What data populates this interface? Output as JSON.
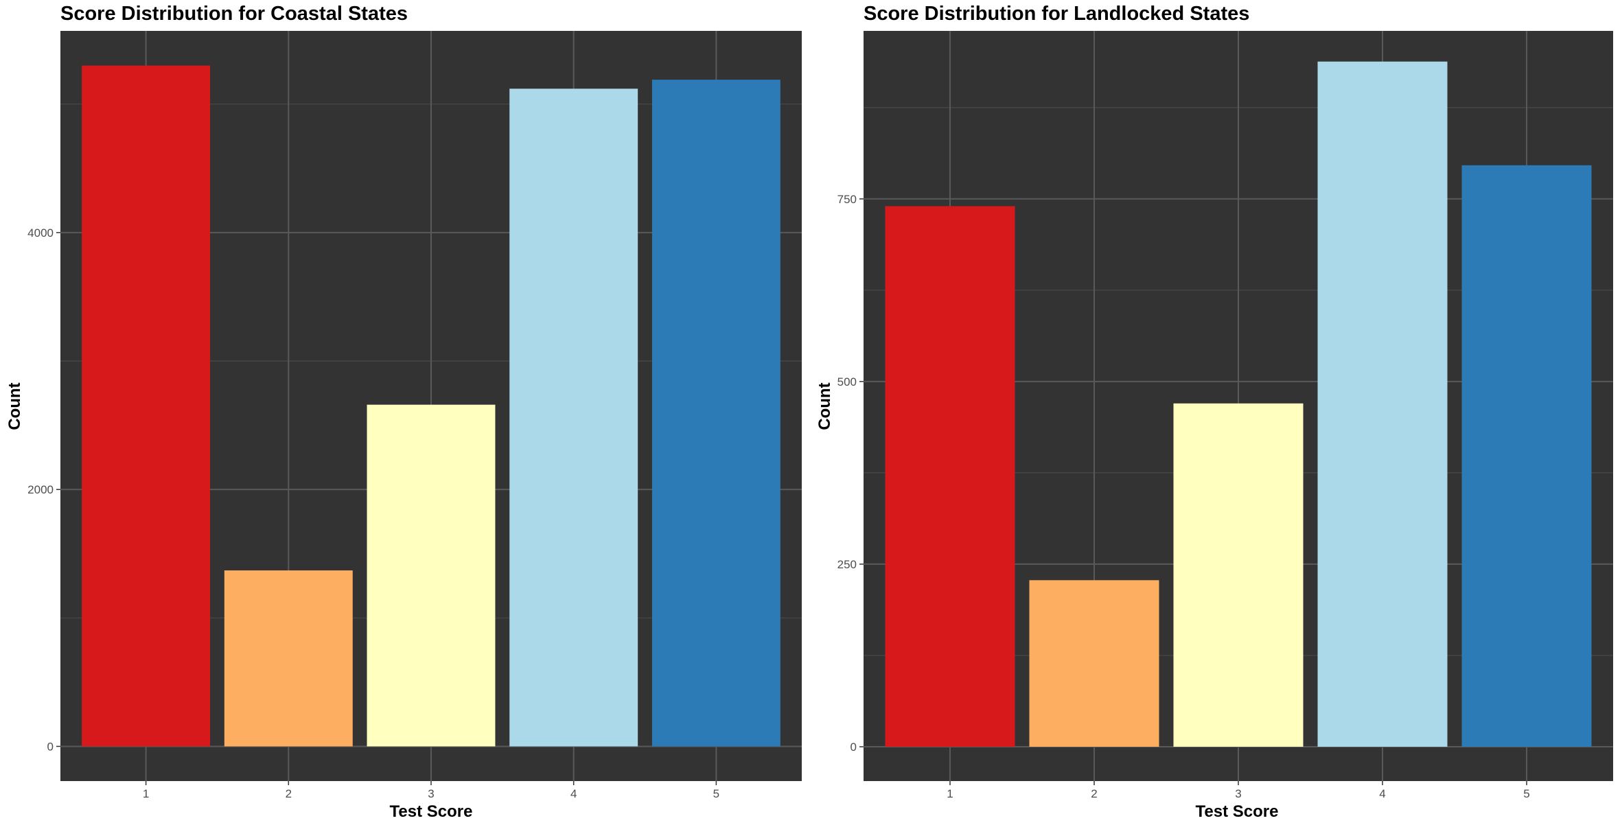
{
  "chart_data": [
    {
      "type": "bar",
      "title": "Score Distribution for Coastal States",
      "xlabel": "Test Score",
      "ylabel": "Count",
      "categories": [
        "1",
        "2",
        "3",
        "4",
        "5"
      ],
      "values": [
        5300,
        1370,
        2660,
        5120,
        5190
      ],
      "ylim": [
        -270,
        5570
      ],
      "yticks": [
        0,
        2000,
        4000
      ],
      "ytick_labels": [
        "0",
        "2000",
        "4000"
      ],
      "bar_colors": [
        "#d7191c",
        "#fdae61",
        "#ffffbf",
        "#abd9e9",
        "#2c7bb6"
      ],
      "panel_background": "#333333",
      "grid": true,
      "legend": "none"
    },
    {
      "type": "bar",
      "title": "Score Distribution for Landlocked States",
      "xlabel": "Test Score",
      "ylabel": "Count",
      "categories": [
        "1",
        "2",
        "3",
        "4",
        "5"
      ],
      "values": [
        740,
        228,
        470,
        938,
        796
      ],
      "ylim": [
        -47,
        980
      ],
      "yticks": [
        0,
        250,
        500,
        750
      ],
      "ytick_labels": [
        "0",
        "250",
        "500",
        "750"
      ],
      "bar_colors": [
        "#d7191c",
        "#fdae61",
        "#ffffbf",
        "#abd9e9",
        "#2c7bb6"
      ],
      "panel_background": "#333333",
      "grid": true,
      "legend": "none"
    }
  ]
}
